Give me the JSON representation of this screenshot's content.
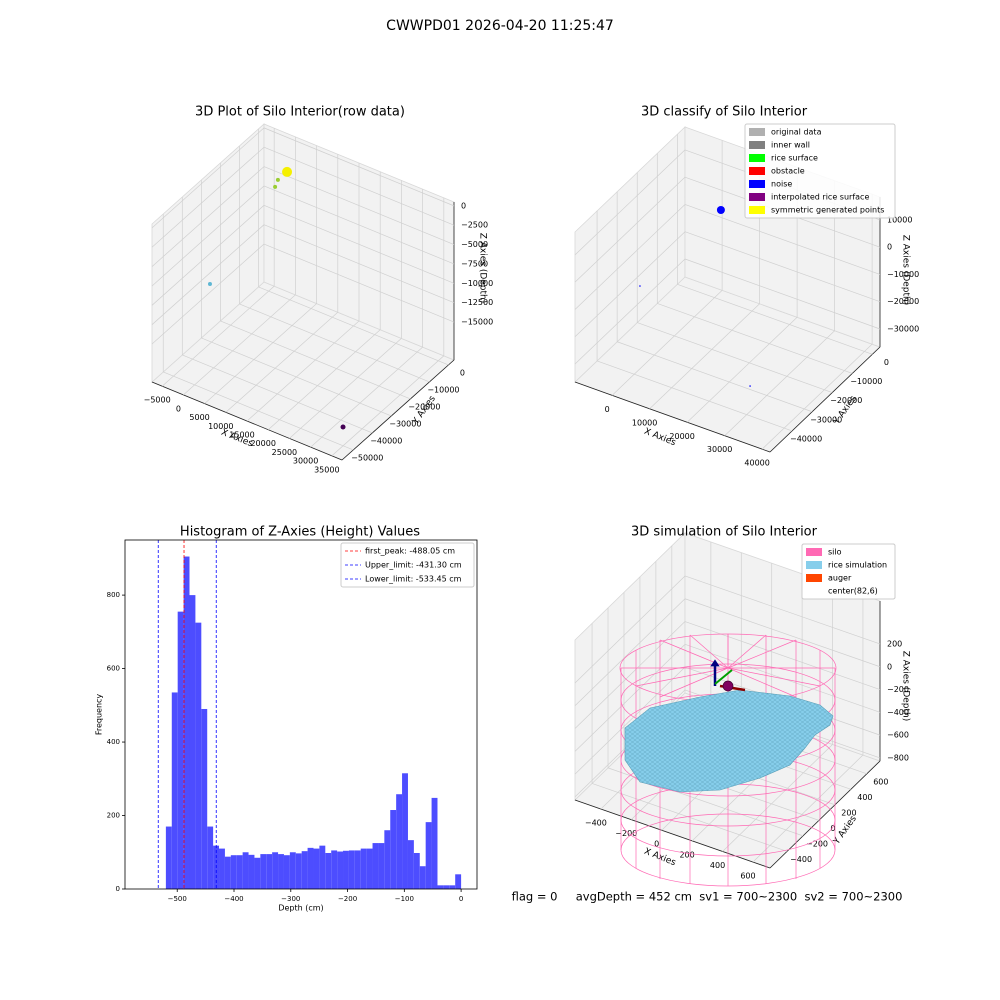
{
  "title": "CWWPD01 2026-04-20 11:25:47",
  "footer": "flag = 0     avgDepth = 452 cm  sv1 = 700~2300  sv2 = 700~2300",
  "chart_data": [
    {
      "type": "scatter3d",
      "title": "3D Plot of Silo Interior(row data)",
      "xlabel": "X Axies",
      "ylabel": "Y Axies",
      "zlabel": "Z Axies (Depth)",
      "xlim": [
        -7400,
        37400
      ],
      "ylim": [
        -55900,
        2900
      ],
      "zlim": [
        -19900,
        500
      ],
      "xticks": [
        {
          "value": -5000,
          "label": "−5000"
        },
        0,
        5000,
        10000,
        15000,
        20000,
        25000,
        30000,
        35000
      ],
      "yticks": [
        {
          "value": -50000,
          "label": "−50000"
        },
        {
          "value": -40000,
          "label": "−40000"
        },
        {
          "value": -30000,
          "label": "−30000"
        },
        {
          "value": -20000,
          "label": "−20000"
        },
        {
          "value": -10000,
          "label": "−10000"
        },
        0
      ],
      "zticks": [
        0,
        {
          "value": -2500,
          "label": "−2500"
        },
        {
          "value": -5000,
          "label": "−5000"
        },
        {
          "value": -7500,
          "label": "−7500"
        },
        {
          "value": -10000,
          "label": "−10000"
        },
        {
          "value": -12500,
          "label": "−12500"
        },
        {
          "value": -15000,
          "label": "−15000"
        }
      ],
      "points": {
        "x": [
          4290,
          4250,
          3670,
          -1890,
          34260
        ],
        "y": [
          -11030,
          -15740,
          -15920,
          -37730,
          -48370
        ],
        "z": [
          0,
          0,
          -1000,
          -10000,
          -18000
        ],
        "colors": [
          "#f5f000",
          "#9acd32",
          "#9acd32",
          "#5fb7d4",
          "#440154"
        ],
        "sizes": [
          5,
          2,
          2,
          2,
          2.5
        ]
      }
    },
    {
      "type": "scatter3d",
      "title": "3D classify of Silo Interior",
      "xlabel": "X Axies",
      "ylabel": "Y Axies",
      "zlabel": "Z Axies (Depth)",
      "xlim": [
        -9900,
        42100
      ],
      "ylim": [
        -51000,
        3800
      ],
      "zlim": [
        -36600,
        18400
      ],
      "xticks": [
        0,
        10000,
        20000,
        30000,
        40000
      ],
      "yticks": [
        {
          "value": -40000,
          "label": "−40000"
        },
        {
          "value": -30000,
          "label": "−30000"
        },
        {
          "value": -20000,
          "label": "−20000"
        },
        {
          "value": -10000,
          "label": "−10000"
        },
        0
      ],
      "zticks": [
        10000,
        0,
        {
          "value": -10000,
          "label": "−10000"
        },
        {
          "value": -20000,
          "label": "−20000"
        },
        {
          "value": -30000,
          "label": "−30000"
        }
      ],
      "legend": [
        {
          "name": "original data",
          "color": "#b0b0b0"
        },
        {
          "name": "inner wall",
          "color": "#808080"
        },
        {
          "name": "rice surface",
          "color": "#00ff00"
        },
        {
          "name": "obstacle",
          "color": "#ff0000"
        },
        {
          "name": "noise",
          "color": "#0000ff"
        },
        {
          "name": "interpolated rice surface",
          "color": "#800080"
        },
        {
          "name": "symmetric generated points",
          "color": "#ffff00"
        }
      ],
      "points": {
        "x": [
          3720,
          3460,
          34040
        ],
        "y": [
          -3760,
          -43600,
          -45870
        ],
        "z": [
          0,
          0,
          -20000
        ],
        "colors": [
          "#0000ff",
          "#0000ff",
          "#0000ff"
        ],
        "sizes": [
          4,
          0.8,
          0.8
        ]
      }
    },
    {
      "type": "histogram",
      "title": "Histogram of Z-Axies (Height) Values",
      "xlabel": "Depth (cm)",
      "ylabel": "Frequency",
      "color": "#4d4dff",
      "bins": [
        -520,
        -509.6,
        -499.2,
        -488.8,
        -478.4,
        -468,
        -457.6,
        -447.2,
        -436.8,
        -426.4,
        -416,
        -405.6,
        -395.2,
        -384.8,
        -374.4,
        -364,
        -353.6,
        -343.2,
        -332.8,
        -322.4,
        -312,
        -301.6,
        -291.2,
        -280.8,
        -270.4,
        -260,
        -249.6,
        -239.2,
        -228.8,
        -218.4,
        -208,
        -197.6,
        -187.2,
        -176.8,
        -166.4,
        -156,
        -145.6,
        -135.2,
        -124.8,
        -114.4,
        -104,
        -93.6,
        -83.2,
        -72.8,
        -62.4,
        -52,
        -41.6,
        -31.2,
        -20.8,
        -10.4,
        0
      ],
      "counts": [
        170,
        535,
        755,
        905,
        800,
        725,
        490,
        170,
        118,
        110,
        88,
        92,
        92,
        100,
        93,
        85,
        95,
        95,
        100,
        95,
        92,
        100,
        97,
        103,
        112,
        110,
        118,
        98,
        105,
        102,
        104,
        105,
        105,
        110,
        110,
        125,
        125,
        160,
        215,
        258,
        315,
        133,
        98,
        62,
        182,
        248,
        10,
        10,
        10,
        40
      ],
      "xlim": [
        -592,
        28
      ],
      "ylim": [
        0,
        950
      ],
      "xticks": [
        {
          "value": -500,
          "label": "−500"
        },
        {
          "value": -400,
          "label": "−400"
        },
        {
          "value": -300,
          "label": "−300"
        },
        {
          "value": -200,
          "label": "−200"
        },
        {
          "value": -100,
          "label": "−100"
        },
        0
      ],
      "yticks": [
        0,
        200,
        400,
        600,
        800
      ],
      "vlines": [
        {
          "name": "first_peak: -488.05 cm",
          "value": -488.05,
          "color": "#ff0000"
        },
        {
          "name": "Upper_limit: -431.30 cm",
          "value": -431.3,
          "color": "#0000ff"
        },
        {
          "name": "Lower_limit: -533.45 cm",
          "value": -533.45,
          "color": "#0000ff"
        }
      ]
    },
    {
      "type": "surface3d",
      "title": "3D simulation of Silo Interior",
      "xlabel": "X Axies",
      "ylabel": "Y Axies",
      "zlabel": "Z Axies (Depth)",
      "xlim": [
        -570,
        712
      ],
      "ylim": [
        -614,
        765
      ],
      "zlim": [
        -827,
        577
      ],
      "xticks": [
        {
          "value": -400,
          "label": "−400"
        },
        {
          "value": -200,
          "label": "−200"
        },
        0,
        200,
        400,
        600
      ],
      "yticks": [
        {
          "value": -400,
          "label": "−400"
        },
        {
          "value": -200,
          "label": "−200"
        },
        0,
        200,
        400,
        600
      ],
      "zticks": [
        200,
        0,
        {
          "value": -200,
          "label": "−200"
        },
        {
          "value": -400,
          "label": "−400"
        },
        {
          "value": -600,
          "label": "−600"
        },
        {
          "value": -800,
          "label": "−800"
        }
      ],
      "legend": [
        {
          "name": "silo",
          "color": "#ff69b4"
        },
        {
          "name": "rice simulation",
          "color": "#87ceeb"
        },
        {
          "name": "auger",
          "color": "#ff4500"
        },
        {
          "name": "center(82,6)",
          "color": "#ffffff"
        }
      ]
    }
  ]
}
